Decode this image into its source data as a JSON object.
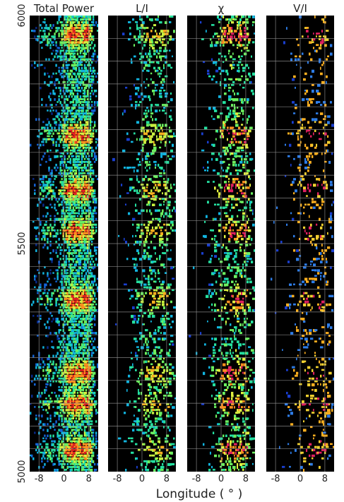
{
  "chart_data": {
    "type": "heatmap",
    "xlabel": "Longitude ( ° )",
    "ylabel": "",
    "shared_x_ticks": [
      -8,
      0,
      8
    ],
    "shared_y_ticks": [
      5000,
      5500,
      6000
    ],
    "xlim": [
      -11,
      11
    ],
    "ylim": [
      5000,
      6000
    ],
    "background": "#000000",
    "grid": true,
    "panels": [
      {
        "title": "Total Power",
        "palette": [
          "#0a2a8a",
          "#1565d8",
          "#12b5e0",
          "#25e0a0",
          "#6cf060",
          "#d8f040",
          "#ff9020",
          "#e02020"
        ],
        "density": 0.95
      },
      {
        "title": "L/I",
        "palette": [
          "#1a3fd0",
          "#12b5e0",
          "#25e0a0",
          "#6cf060",
          "#c8f040",
          "#ffb020"
        ],
        "density": 0.28
      },
      {
        "title": "χ",
        "palette": [
          "#1a3fd0",
          "#12b5e0",
          "#25e0a0",
          "#6cf060",
          "#e0f040",
          "#ff9020",
          "#e02060"
        ],
        "density": 0.3
      },
      {
        "title": "V/I",
        "palette": [
          "#1a3fd0",
          "#2e7de8",
          "#ffb020",
          "#f0d030",
          "#e02060"
        ],
        "density": 0.16
      }
    ]
  }
}
